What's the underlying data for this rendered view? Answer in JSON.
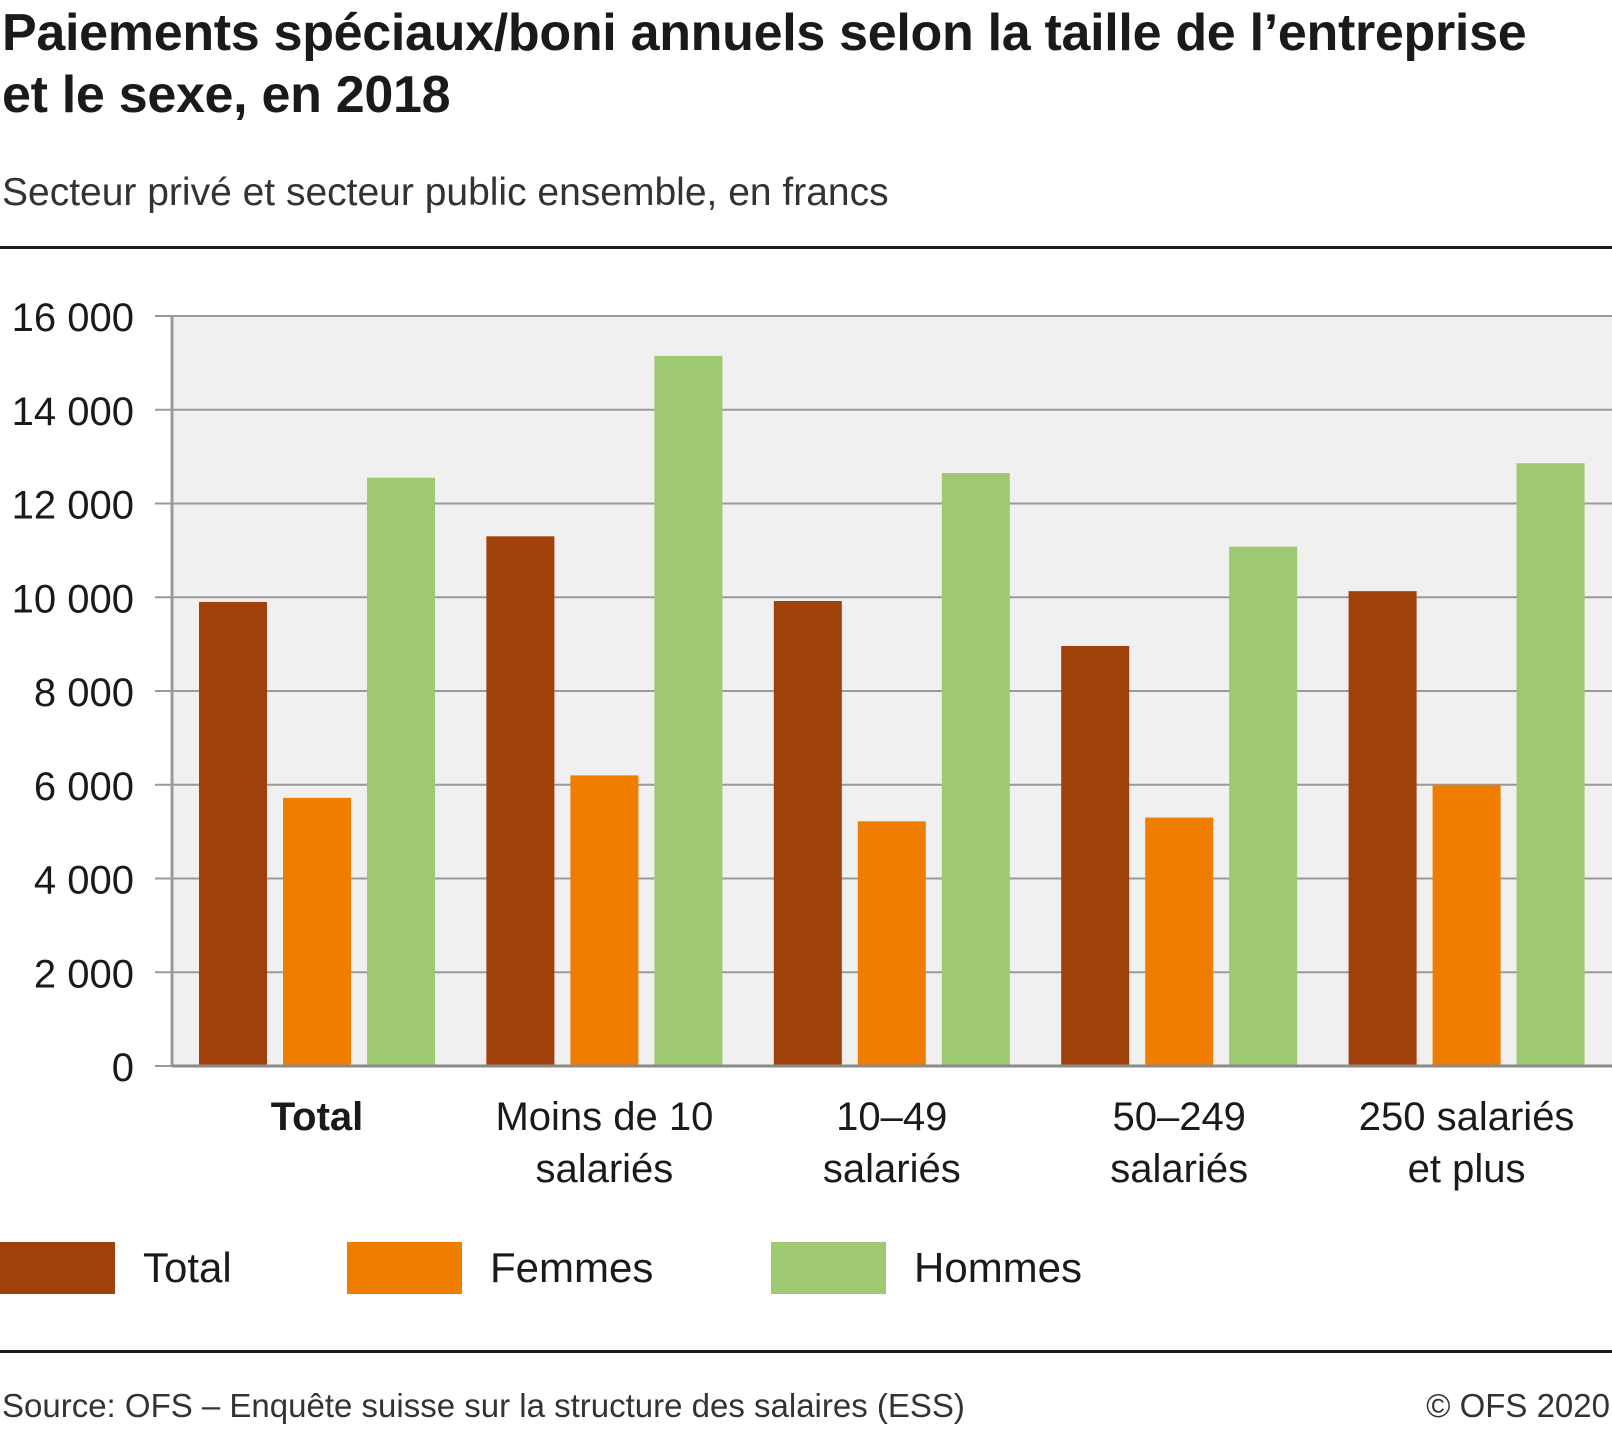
{
  "header": {
    "title": "Paiements spéciaux/boni annuels selon la taille de l’entreprise et le sexe, en 2018",
    "subtitle": "Secteur privé et secteur public ensemble, en francs"
  },
  "chart_data": {
    "type": "bar",
    "title": "Paiements spéciaux/boni annuels selon la taille de l’entreprise et le sexe, en 2018",
    "subtitle": "Secteur privé et secteur public ensemble, en francs",
    "categories": [
      [
        "Total"
      ],
      [
        "Moins de 10",
        "salariés"
      ],
      [
        "10–49",
        "salariés"
      ],
      [
        "50–249",
        "salariés"
      ],
      [
        "250 salariés",
        "et plus"
      ]
    ],
    "bold_category_index": 0,
    "series": [
      {
        "name": "Total",
        "color": "#a0400a",
        "values": [
          9900,
          11300,
          9920,
          8960,
          10130
        ]
      },
      {
        "name": "Femmes",
        "color": "#ef7d00",
        "values": [
          5720,
          6200,
          5220,
          5300,
          6000
        ]
      },
      {
        "name": "Hommes",
        "color": "#9fc873",
        "values": [
          12550,
          15150,
          12650,
          11080,
          12860
        ]
      }
    ],
    "ylim": [
      0,
      16000
    ],
    "yticks": [
      0,
      2000,
      4000,
      6000,
      8000,
      10000,
      12000,
      14000,
      16000
    ],
    "ytick_labels": [
      "0",
      "2 000",
      "4 000",
      "6 000",
      "8 000",
      "10 000",
      "12 000",
      "14 000",
      "16 000"
    ],
    "grid": true,
    "legend_position": "bottom",
    "plot_background": "#f0f0f0",
    "grid_color": "#9a9a9a"
  },
  "footer": {
    "source": "Source: OFS – Enquête suisse sur la structure des salaires (ESS)",
    "copyright": "© OFS 2020"
  }
}
